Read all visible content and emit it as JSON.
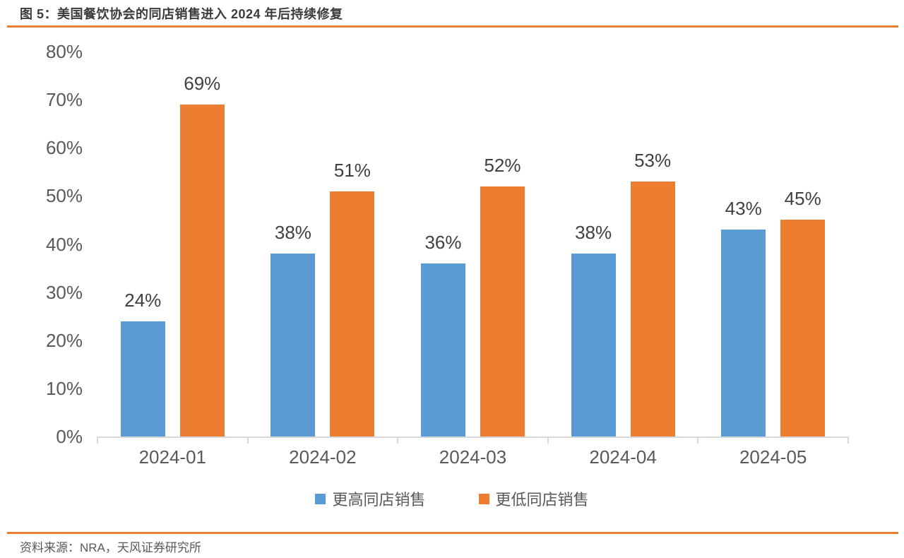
{
  "header": {
    "title": "图 5：美国餐饮协会的同店销售进入 2024 年后持续修复"
  },
  "chart_data": {
    "type": "bar",
    "title": "美国餐饮协会的同店销售进入 2024 年后持续修复",
    "categories": [
      "2024-01",
      "2024-02",
      "2024-03",
      "2024-04",
      "2024-05"
    ],
    "series": [
      {
        "name": "更高同店销售",
        "color": "#5B9BD5",
        "values": [
          24,
          38,
          36,
          38,
          43
        ]
      },
      {
        "name": "更低同店销售",
        "color": "#ED7D31",
        "values": [
          69,
          51,
          52,
          53,
          45
        ]
      }
    ],
    "data_label_unit": "%",
    "xlabel": "",
    "ylabel": "",
    "ylim": [
      0,
      80
    ],
    "ytick_interval": 10,
    "ytick_labels": [
      "0%",
      "10%",
      "20%",
      "30%",
      "40%",
      "50%",
      "60%",
      "70%",
      "80%"
    ],
    "grid": false,
    "legend_position": "bottom"
  },
  "footer": {
    "source": "资料来源：NRA，天风证券研究所"
  },
  "colors": {
    "accent_rule": "#ED7D31",
    "axis_line": "#D9D9D9",
    "axis_text": "#595959",
    "data_label_text": "#404040",
    "title_text": "#3B3B3B"
  }
}
